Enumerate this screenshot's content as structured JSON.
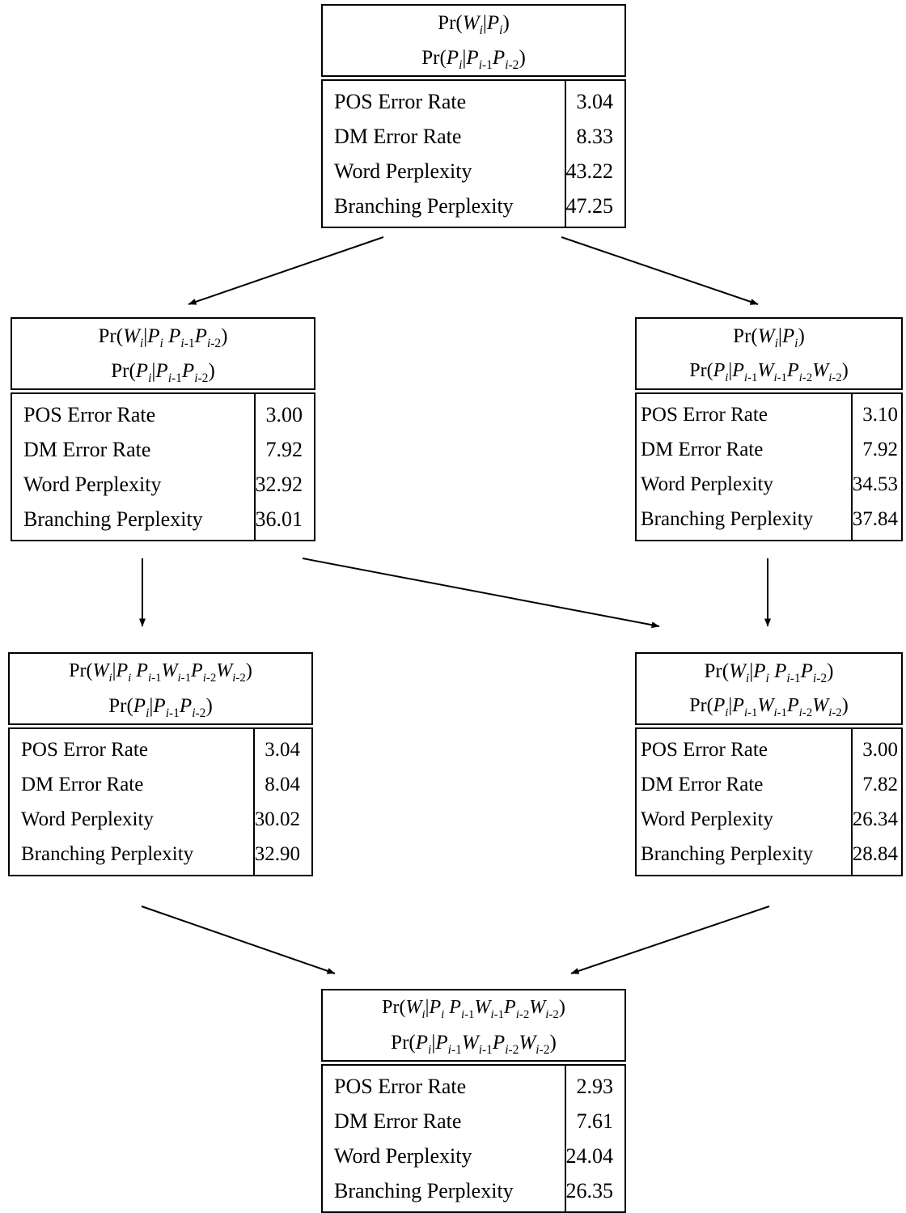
{
  "nodes": [
    {
      "models": [
        "Pr(W_i|P_i)",
        "Pr(P_i|P_i-1P_i-2)"
      ],
      "rows": [
        {
          "label": "POS Error Rate",
          "value": "3.04"
        },
        {
          "label": "DM Error Rate",
          "value": "8.33"
        },
        {
          "label": "Word Perplexity",
          "value": "43.22"
        },
        {
          "label": "Branching Perplexity",
          "value": "47.25"
        }
      ]
    },
    {
      "models": [
        "Pr(W_i|P_i P_i-1P_i-2)",
        "Pr(P_i|P_i-1P_i-2)"
      ],
      "rows": [
        {
          "label": "POS Error Rate",
          "value": "3.00"
        },
        {
          "label": "DM Error Rate",
          "value": "7.92"
        },
        {
          "label": "Word Perplexity",
          "value": "32.92"
        },
        {
          "label": "Branching Perplexity",
          "value": "36.01"
        }
      ]
    },
    {
      "models": [
        "Pr(W_i|P_i)",
        "Pr(P_i|P_i-1W_i-1P_i-2W_i-2)"
      ],
      "rows": [
        {
          "label": "POS Error Rate",
          "value": "3.10"
        },
        {
          "label": "DM Error Rate",
          "value": "7.92"
        },
        {
          "label": "Word Perplexity",
          "value": "34.53"
        },
        {
          "label": "Branching Perplexity",
          "value": "37.84"
        }
      ]
    },
    {
      "models": [
        "Pr(W_i|P_i P_i-1W_i-1P_i-2W_i-2)",
        "Pr(P_i|P_i-1P_i-2)"
      ],
      "rows": [
        {
          "label": "POS Error Rate",
          "value": "3.04"
        },
        {
          "label": "DM Error Rate",
          "value": "8.04"
        },
        {
          "label": "Word Perplexity",
          "value": "30.02"
        },
        {
          "label": "Branching Perplexity",
          "value": "32.90"
        }
      ]
    },
    {
      "models": [
        "Pr(W_i|P_i P_i-1P_i-2)",
        "Pr(P_i|P_i-1W_i-1P_i-2W_i-2)"
      ],
      "rows": [
        {
          "label": "POS Error Rate",
          "value": "3.00"
        },
        {
          "label": "DM Error Rate",
          "value": "7.82"
        },
        {
          "label": "Word Perplexity",
          "value": "26.34"
        },
        {
          "label": "Branching Perplexity",
          "value": "28.84"
        }
      ]
    },
    {
      "models": [
        "Pr(W_i|P_i P_i-1W_i-1P_i-2W_i-2)",
        "Pr(P_i|P_i-1W_i-1P_i-2W_i-2)"
      ],
      "rows": [
        {
          "label": "POS Error Rate",
          "value": "2.93"
        },
        {
          "label": "DM Error Rate",
          "value": "7.61"
        },
        {
          "label": "Word Perplexity",
          "value": "24.04"
        },
        {
          "label": "Branching Perplexity",
          "value": "26.35"
        }
      ]
    }
  ],
  "edges": [
    {
      "from": 0,
      "to": 1
    },
    {
      "from": 0,
      "to": 2
    },
    {
      "from": 1,
      "to": 3
    },
    {
      "from": 1,
      "to": 4
    },
    {
      "from": 2,
      "to": 4
    },
    {
      "from": 3,
      "to": 5
    },
    {
      "from": 4,
      "to": 5
    }
  ]
}
